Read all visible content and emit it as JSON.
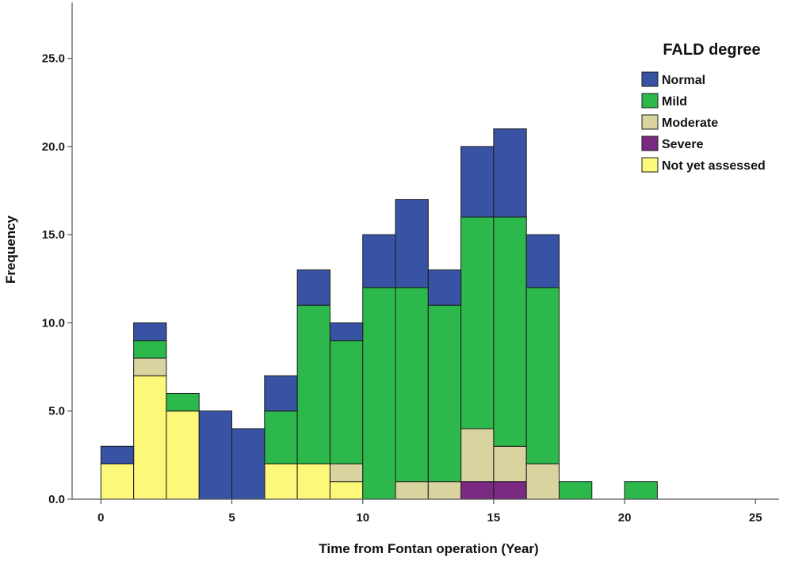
{
  "chart_data": {
    "type": "bar",
    "stacked": true,
    "title": "",
    "xlabel": "Time from Fontan operation (Year)",
    "ylabel": "Frequency",
    "xlim": [
      -1.1,
      25.9
    ],
    "ylim": [
      0,
      27.5
    ],
    "x_ticks": [
      0,
      5,
      10,
      15,
      20,
      25
    ],
    "x_tick_labels": [
      "0",
      "5",
      "10",
      "15",
      "20",
      "25"
    ],
    "y_ticks": [
      0,
      5,
      10,
      15,
      20,
      25
    ],
    "y_tick_labels": [
      "0.0",
      "5.0",
      "10.0",
      "15.0",
      "20.0",
      "25.0"
    ],
    "grid": false,
    "legend": {
      "title": "FALD degree",
      "position": "top-right",
      "items": [
        {
          "label": "Normal",
          "color": "#3953a4"
        },
        {
          "label": "Mild",
          "color": "#2db84c"
        },
        {
          "label": "Moderate",
          "color": "#d9d3a0"
        },
        {
          "label": "Severe",
          "color": "#7b2a83"
        },
        {
          "label": "Not yet assessed",
          "color": "#fbf87a"
        }
      ]
    },
    "bin_edges": [
      0,
      1.25,
      2.5,
      3.75,
      5.0,
      6.25,
      7.5,
      8.75,
      10.0,
      11.25,
      12.5,
      13.75,
      15.0,
      16.25,
      17.5,
      18.75,
      20.0,
      21.25
    ],
    "series": [
      {
        "name": "Not yet assessed",
        "color": "#fbf87a",
        "values": [
          2,
          7,
          5,
          0,
          0,
          2,
          2,
          1,
          0,
          0,
          0,
          0,
          0,
          0,
          0,
          0,
          0
        ]
      },
      {
        "name": "Severe",
        "color": "#7b2a83",
        "values": [
          0,
          0,
          0,
          0,
          0,
          0,
          0,
          0,
          0,
          0,
          0,
          1,
          1,
          0,
          0,
          0,
          0
        ]
      },
      {
        "name": "Moderate",
        "color": "#d9d3a0",
        "values": [
          0,
          1,
          0,
          0,
          0,
          0,
          0,
          1,
          0,
          1,
          1,
          3,
          2,
          2,
          0,
          0,
          0
        ]
      },
      {
        "name": "Mild",
        "color": "#2db84c",
        "values": [
          0,
          1,
          1,
          0,
          0,
          3,
          9,
          7,
          12,
          11,
          10,
          12,
          13,
          10,
          1,
          0,
          1
        ]
      },
      {
        "name": "Normal",
        "color": "#3953a4",
        "values": [
          1,
          1,
          0,
          5,
          4,
          2,
          2,
          1,
          3,
          5,
          2,
          4,
          5,
          3,
          0,
          0,
          0
        ]
      }
    ]
  }
}
